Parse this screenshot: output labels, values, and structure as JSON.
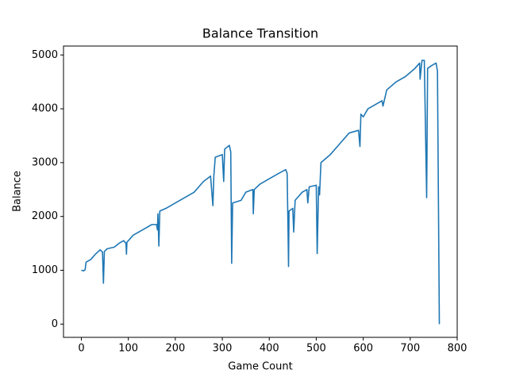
{
  "chart_data": {
    "type": "line",
    "title": "Balance Transition",
    "x_label": "Game Count",
    "y_label": "Balance",
    "color": "#1f77b4",
    "x": [
      0,
      5,
      8,
      10,
      20,
      30,
      40,
      45,
      47,
      49,
      55,
      70,
      80,
      90,
      95,
      96,
      97,
      110,
      130,
      140,
      150,
      160,
      162,
      163,
      165,
      167,
      180,
      200,
      220,
      240,
      250,
      260,
      275,
      280,
      282,
      285,
      300,
      303,
      305,
      315,
      318,
      320,
      322,
      340,
      350,
      365,
      366,
      368,
      380,
      400,
      420,
      435,
      438,
      440,
      441,
      442,
      450,
      452,
      455,
      470,
      480,
      482,
      485,
      500,
      502,
      505,
      507,
      510,
      530,
      550,
      570,
      590,
      593,
      595,
      600,
      610,
      630,
      640,
      642,
      650,
      670,
      690,
      710,
      720,
      721,
      725,
      730,
      735,
      737,
      745,
      755,
      758,
      762
    ],
    "values": [
      1000,
      990,
      1010,
      1150,
      1200,
      1300,
      1380,
      1340,
      760,
      1350,
      1400,
      1430,
      1500,
      1550,
      1500,
      1300,
      1520,
      1650,
      1750,
      1800,
      1850,
      1850,
      1750,
      2050,
      1450,
      2100,
      2150,
      2250,
      2350,
      2450,
      2550,
      2650,
      2750,
      2200,
      2750,
      3100,
      3150,
      2650,
      3250,
      3320,
      3200,
      1130,
      2250,
      2300,
      2450,
      2500,
      2050,
      2500,
      2600,
      2700,
      2800,
      2870,
      2800,
      1700,
      1070,
      2100,
      2150,
      1710,
      2300,
      2450,
      2500,
      2250,
      2550,
      2580,
      1310,
      2550,
      2400,
      3000,
      3150,
      3350,
      3550,
      3600,
      3300,
      3900,
      3850,
      4000,
      4100,
      4150,
      4050,
      4350,
      4500,
      4600,
      4750,
      4850,
      4550,
      4900,
      4900,
      2350,
      4750,
      4800,
      4850,
      4700,
      0
    ],
    "xlim": [
      -38,
      800
    ],
    "xticks": [
      0,
      100,
      200,
      300,
      400,
      500,
      600,
      700,
      800
    ],
    "ylim": [
      -246,
      5166
    ],
    "yticks": [
      0,
      1000,
      2000,
      3000,
      4000,
      5000
    ]
  }
}
